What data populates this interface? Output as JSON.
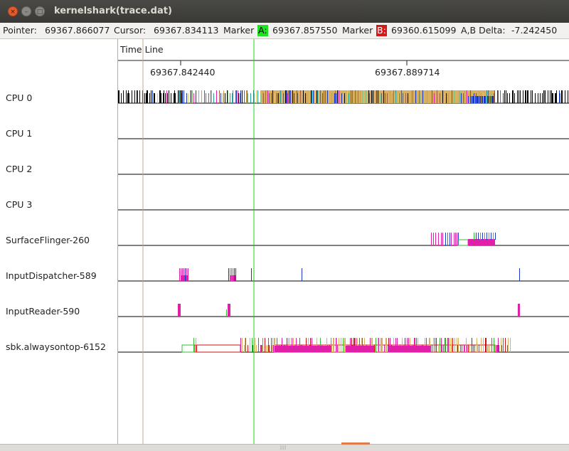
{
  "window": {
    "title": "kernelshark(trace.dat)",
    "buttons": {
      "close": "×",
      "minimize": "–",
      "maximize": "□"
    }
  },
  "infobar": {
    "pointer_label": "Pointer:",
    "pointer_value": "69367.866077",
    "cursor_label": "Cursor:",
    "cursor_value": "69367.834113",
    "marker_a_prefix": "Marker",
    "marker_a_tag": "A:",
    "marker_a_value": "69367.857550",
    "marker_b_prefix": "Marker",
    "marker_b_tag": "B:",
    "marker_b_value": "69360.615099",
    "delta_label": "A,B Delta:",
    "delta_value": "-7.242450"
  },
  "timeline": {
    "label": "Time Line",
    "ticks": [
      "69367.842440",
      "69367.889714"
    ]
  },
  "plots": [
    {
      "label": "CPU 0",
      "kind": "cpu"
    },
    {
      "label": "CPU 1",
      "kind": "cpu"
    },
    {
      "label": "CPU 2",
      "kind": "cpu"
    },
    {
      "label": "CPU 3",
      "kind": "cpu"
    },
    {
      "label": "SurfaceFlinger-260",
      "kind": "task"
    },
    {
      "label": "InputDispatcher-589",
      "kind": "task"
    },
    {
      "label": "InputReader-590",
      "kind": "task"
    },
    {
      "label": "sbk.alwaysontop-6152",
      "kind": "task"
    }
  ],
  "colors": {
    "marker_a": "#22e022",
    "marker_b": "#d81818",
    "cursor_line": "#c8a486",
    "task_pink": "#e020a8",
    "task_blue": "#1838c8",
    "task_gold": "#d8b060",
    "task_red": "#cc1010",
    "task_green": "#30c030"
  },
  "icons": {
    "close": "close-icon",
    "minimize": "minimize-icon",
    "maximize": "maximize-icon"
  }
}
